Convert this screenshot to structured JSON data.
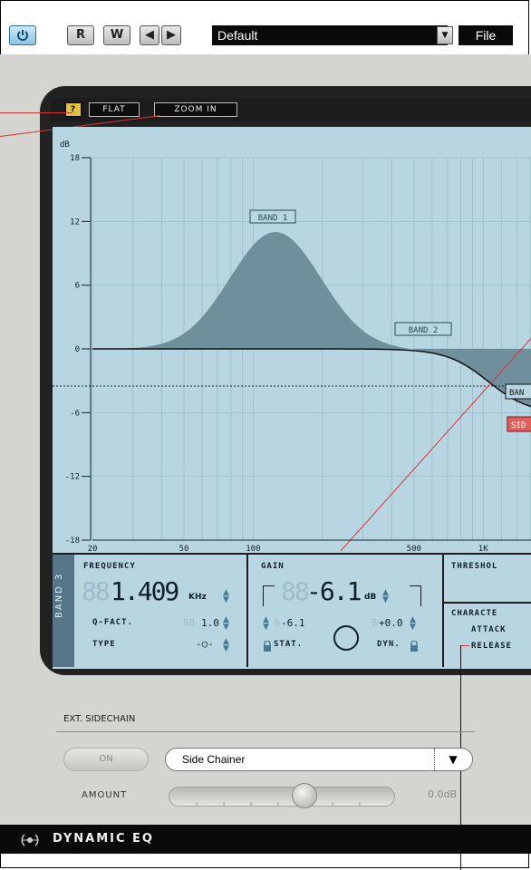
{
  "toolbar": {
    "r_label": "R",
    "w_label": "W",
    "preset_name": "Default",
    "file_label": "File"
  },
  "graph": {
    "flat_label": "FLAT",
    "zoom_label": "ZOOM IN",
    "help_label": "?",
    "db_unit": "dB",
    "y_ticks": [
      "18",
      "12",
      "6",
      "0",
      "-6",
      "-12",
      "-18"
    ],
    "x_ticks": [
      "20",
      "50",
      "100",
      "500",
      "1K"
    ],
    "band1_label": "BAND 1",
    "band2_label": "BAND 2",
    "band3_label": "BAN",
    "side_label": "SID"
  },
  "panel": {
    "band_tab": "BAND 3",
    "frequency_label": "FREQUENCY",
    "frequency_ghost": "88",
    "frequency_value": "1.409",
    "frequency_unit": "KHz",
    "q_label": "Q-FACT.",
    "q_ghost": "88",
    "q_value": "1.0",
    "type_label": "TYPE",
    "type_value": "-○-",
    "gain_label": "GAIN",
    "gain_ghost": "88",
    "gain_value": "-6.1",
    "gain_unit": "dB",
    "stat_value": "-6.1",
    "stat_ghost": "8",
    "stat_label": "STAT.",
    "dyn_value": "+0.0",
    "dyn_ghost": "8",
    "dyn_label": "DYN.",
    "threshold_label": "THRESHOL",
    "character_label": "CHARACTE",
    "attack_label": "ATTACK",
    "release_label": "RELEASE"
  },
  "sidechain": {
    "section_label": "EXT. SIDECHAIN",
    "on_label": "ON",
    "selected": "Side Chainer",
    "amount_label": "AMOUNT",
    "amount_value": "0.0dB",
    "amount_level": 0.6
  },
  "footer": {
    "title": "DYNAMIC EQ"
  },
  "colors": {
    "graph_bg": "#b8d6e2",
    "eq_fill": "#6f8f9c",
    "sidechain_line": "#d33333",
    "annotation_line": "#d33333"
  }
}
